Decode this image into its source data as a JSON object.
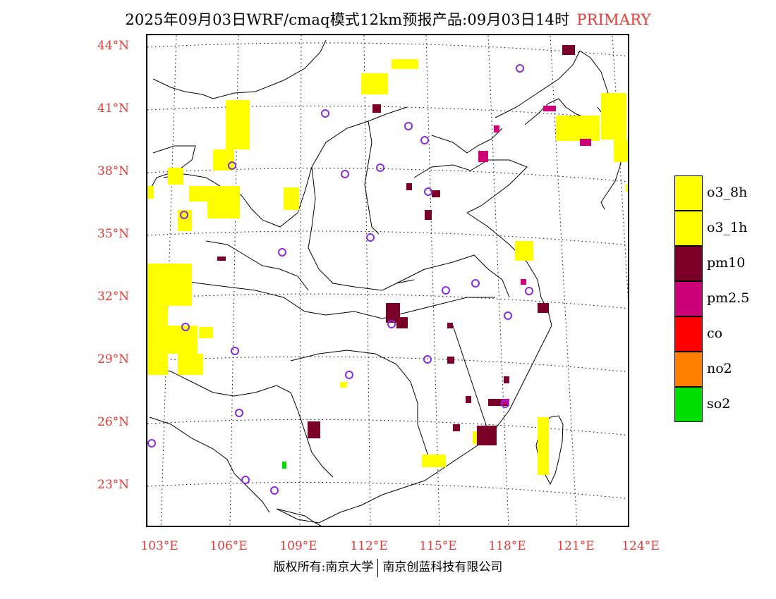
{
  "title": {
    "text": "2025年09月03日WRF/cmaq模式12km预报产品:09月03日14时",
    "badge": "PRIMARY",
    "badge_color": "#e53935"
  },
  "axes": {
    "latitude_labels": [
      "44°N",
      "41°N",
      "38°N",
      "35°N",
      "32°N",
      "29°N",
      "26°N",
      "23°N"
    ],
    "longitude_labels": [
      "103°E",
      "106°E",
      "109°E",
      "112°E",
      "115°E",
      "118°E",
      "121°E",
      "124°E"
    ],
    "label_color": "#e53935"
  },
  "legend": {
    "items": [
      {
        "label": "o3_8h",
        "color": "#ffff00"
      },
      {
        "label": "o3_1h",
        "color": "#ffff00"
      },
      {
        "label": "pm10",
        "color": "#7b0028"
      },
      {
        "label": "pm2.5",
        "color": "#cc0077"
      },
      {
        "label": "co",
        "color": "#ff0000"
      },
      {
        "label": "no2",
        "color": "#ff7f00"
      },
      {
        "label": "so2",
        "color": "#00dd00"
      }
    ]
  },
  "copyright": {
    "left": "版权所有:南京大学",
    "right": "南京创蓝科技有限公司"
  },
  "colors": {
    "station_marker": "#8a2be2",
    "graticule": "#000000",
    "boundary": "#000000"
  }
}
